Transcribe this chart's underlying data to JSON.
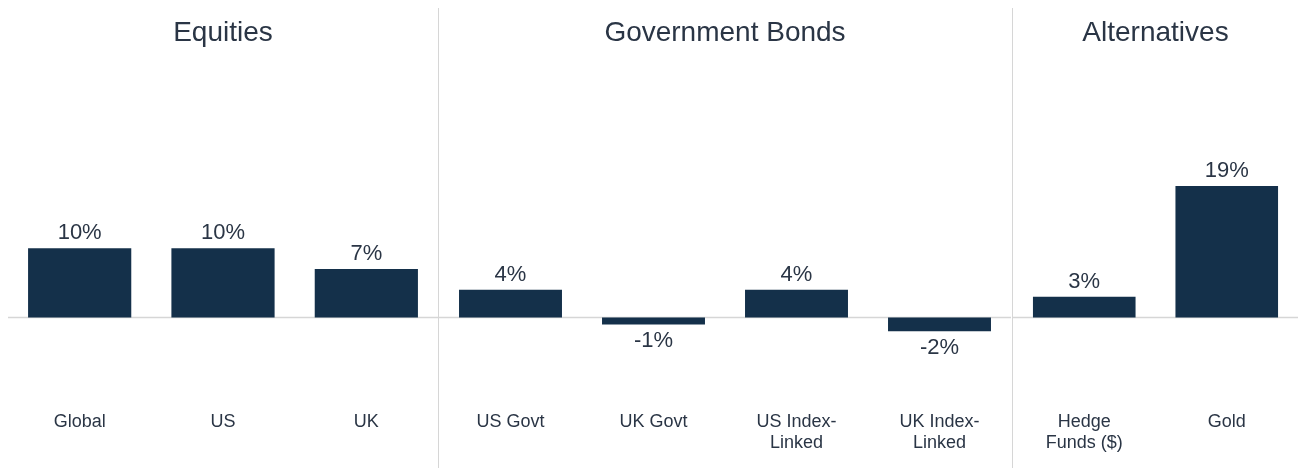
{
  "chart_data": [
    {
      "type": "bar",
      "title": "Equities",
      "categories": [
        "Global",
        "US",
        "UK"
      ],
      "values": [
        10,
        10,
        7
      ],
      "value_labels": [
        "10%",
        "10%",
        "7%"
      ],
      "color": "#14304a",
      "tick_labels": "x",
      "legend": false
    },
    {
      "type": "bar",
      "title": "Government Bonds",
      "categories": [
        "US Govt",
        "UK Govt",
        "US Index-Linked",
        "UK Index-Linked"
      ],
      "values": [
        4,
        -1,
        4,
        -2
      ],
      "value_labels": [
        "4%",
        "-1%",
        "4%",
        "-2%"
      ],
      "color": "#14304a",
      "tick_labels": "x",
      "legend": false
    },
    {
      "type": "bar",
      "title": "Alternatives",
      "categories": [
        "Hedge Funds ($)",
        "Gold"
      ],
      "values": [
        3,
        19
      ],
      "value_labels": [
        "3%",
        "19%"
      ],
      "color": "#14304a",
      "tick_labels": "x",
      "legend": false
    }
  ]
}
